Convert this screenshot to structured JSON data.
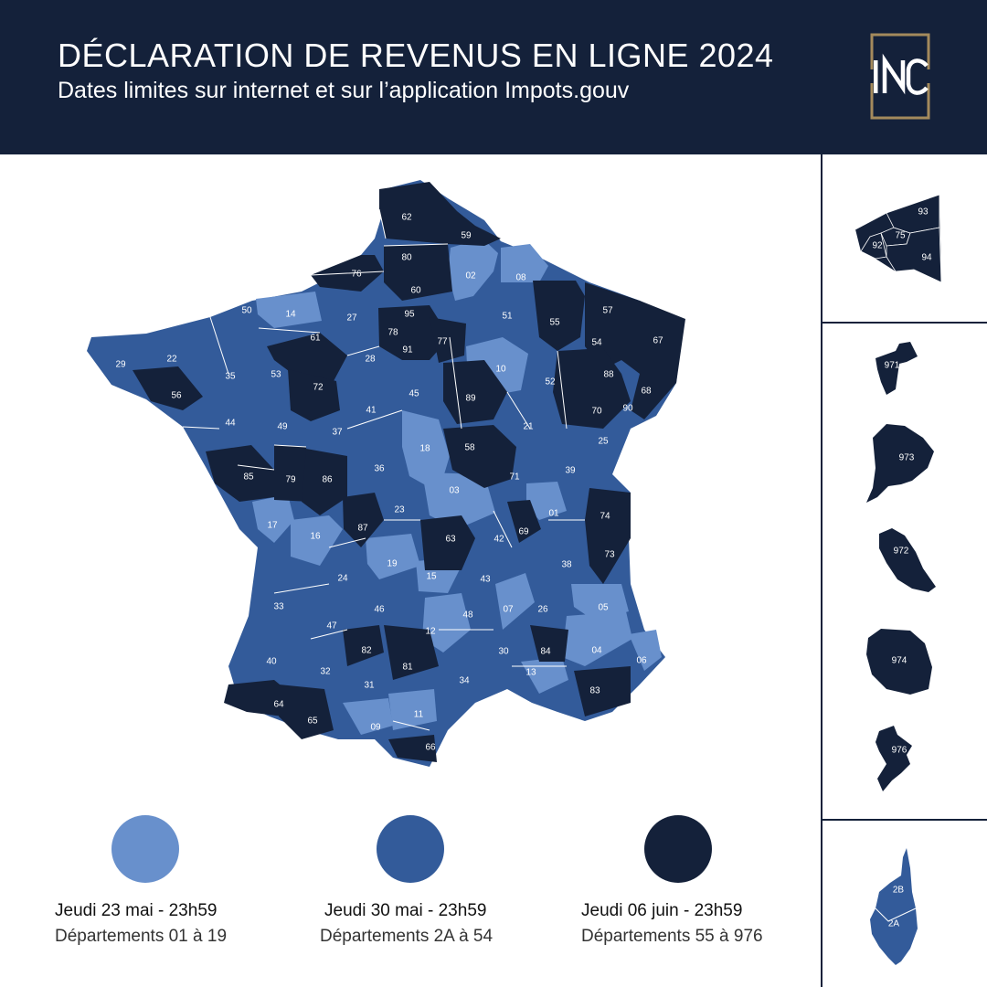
{
  "header": {
    "title": "DÉCLARATION DE REVENUS EN LIGNE 2024",
    "subtitle": "Dates limites sur internet et sur l’application Impots.gouv",
    "logo_text": "INC"
  },
  "colors": {
    "header_bg": "#14213a",
    "group_light": "#6890cc",
    "group_medium": "#335b9a",
    "group_dark": "#14213a",
    "logo_gold": "#a48a5c"
  },
  "legend": [
    {
      "date": "Jeudi 23 mai - 23h59",
      "departments": "Départements 01 à 19",
      "color": "#6890cc"
    },
    {
      "date": "Jeudi 30 mai - 23h59",
      "departments": "Départements 2A à 54",
      "color": "#335b9a"
    },
    {
      "date": "Jeudi 06 juin - 23h59",
      "departments": "Départements 55 à 976",
      "color": "#14213a"
    }
  ],
  "departments_light": [
    "01",
    "02",
    "03",
    "04",
    "05",
    "06",
    "07",
    "08",
    "09",
    "10",
    "11",
    "12",
    "13",
    "14",
    "15",
    "16",
    "17",
    "18",
    "19"
  ],
  "departments_medium": [
    "21",
    "22",
    "23",
    "24",
    "25",
    "26",
    "27",
    "28",
    "29",
    "30",
    "31",
    "32",
    "33",
    "34",
    "35",
    "36",
    "37",
    "38",
    "39",
    "40",
    "41",
    "42",
    "43",
    "44",
    "45",
    "46",
    "47",
    "48",
    "49",
    "50",
    "51",
    "52",
    "53",
    "54"
  ],
  "departments_dark": [
    "55",
    "56",
    "57",
    "58",
    "59",
    "60",
    "61",
    "62",
    "63",
    "64",
    "65",
    "66",
    "67",
    "68",
    "69",
    "70",
    "71",
    "72",
    "73",
    "74",
    "76",
    "77",
    "78",
    "79",
    "80",
    "81",
    "82",
    "83",
    "84",
    "85",
    "86",
    "87",
    "88",
    "89",
    "90",
    "91",
    "95"
  ],
  "idf_departments": [
    "93",
    "92",
    "75",
    "94"
  ],
  "overseas_departments": [
    "971",
    "973",
    "972",
    "974",
    "976"
  ],
  "corsica_departments": [
    "2B",
    "2A"
  ]
}
